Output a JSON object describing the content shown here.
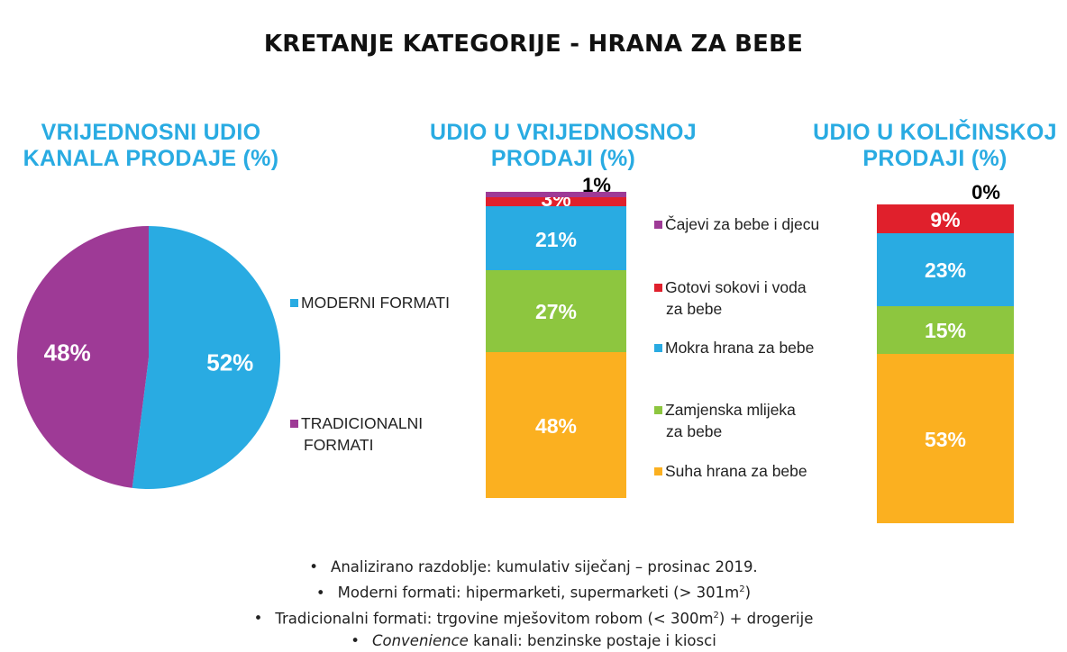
{
  "title": "KRETANJE KATEGORIJE - HRANA ZA BEBE",
  "colors": {
    "title_blue": "#29ABE2",
    "modern": "#29ABE2",
    "traditional": "#9E3A96",
    "tea": "#9E3A96",
    "juice": "#E0202C",
    "wet": "#29ABE2",
    "milk": "#8DC63F",
    "dry": "#FBB020"
  },
  "chart_data": [
    {
      "type": "pie",
      "title_line1": "VRIJEDNOSNI UDIO",
      "title_line2": "KANALA PRODAJE (%)",
      "slices": [
        {
          "name": "MODERNI FORMATI",
          "value": 52,
          "label": "52%"
        },
        {
          "name": "TRADICIONALNI FORMATI",
          "value": 48,
          "label": "48%"
        }
      ],
      "legend": [
        {
          "line1": "MODERNI FORMATI",
          "line2": ""
        },
        {
          "line1": "TRADICIONALNI",
          "line2": "FORMATI"
        }
      ]
    },
    {
      "type": "bar",
      "stacked": true,
      "title_line1": "UDIO U VRIJEDNOSNOJ",
      "title_line2": "PRODAJI (%)",
      "series": [
        {
          "name": "Suha hrana za bebe",
          "value": 48,
          "label": "48%"
        },
        {
          "name": "Zamjenska mlijeka za bebe",
          "value": 27,
          "label": "27%"
        },
        {
          "name": "Mokra hrana za bebe",
          "value": 21,
          "label": "21%"
        },
        {
          "name": "Gotovi sokovi i voda za bebe",
          "value": 3,
          "label": "3%"
        },
        {
          "name": "Čajevi za bebe i djecu",
          "value": 1,
          "label": "1%"
        }
      ]
    },
    {
      "type": "bar",
      "stacked": true,
      "title_line1": "UDIO U KOLIČINSKOJ",
      "title_line2": "PRODAJI (%)",
      "series": [
        {
          "name": "Suha hrana za bebe",
          "value": 53,
          "label": "53%"
        },
        {
          "name": "Zamjenska mlijeka za bebe",
          "value": 15,
          "label": "15%"
        },
        {
          "name": "Mokra hrana za bebe",
          "value": 23,
          "label": "23%"
        },
        {
          "name": "Gotovi sokovi i voda za bebe",
          "value": 9,
          "label": "9%"
        },
        {
          "name": "Čajevi za bebe i djecu",
          "value": 0,
          "label": "0%"
        }
      ]
    }
  ],
  "category_legend": [
    {
      "line1": "Čajevi za bebe i djecu",
      "line2": ""
    },
    {
      "line1": "Gotovi sokovi i voda",
      "line2": "za bebe"
    },
    {
      "line1": "Mokra hrana za bebe",
      "line2": ""
    },
    {
      "line1": "Zamjenska mlijeka",
      "line2": "za bebe"
    },
    {
      "line1": "Suha hrana za bebe",
      "line2": ""
    }
  ],
  "notes": {
    "bullet": "•",
    "line1": "Analizirano razdoblje: kumulativ siječanj – prosinac 2019.",
    "line2_pre": "Moderni formati: hipermarketi, supermarketi (> 301m",
    "line2_sup": "2",
    "line2_post": ")",
    "line3_pre": "Tradicionalni formati: trgovine mješovitom robom (< 300m",
    "line3_sup": "2",
    "line3_post": ") + drogerije",
    "line4_em": "Convenience",
    "line4_rest": " kanali: benzinske postaje i kiosci"
  }
}
